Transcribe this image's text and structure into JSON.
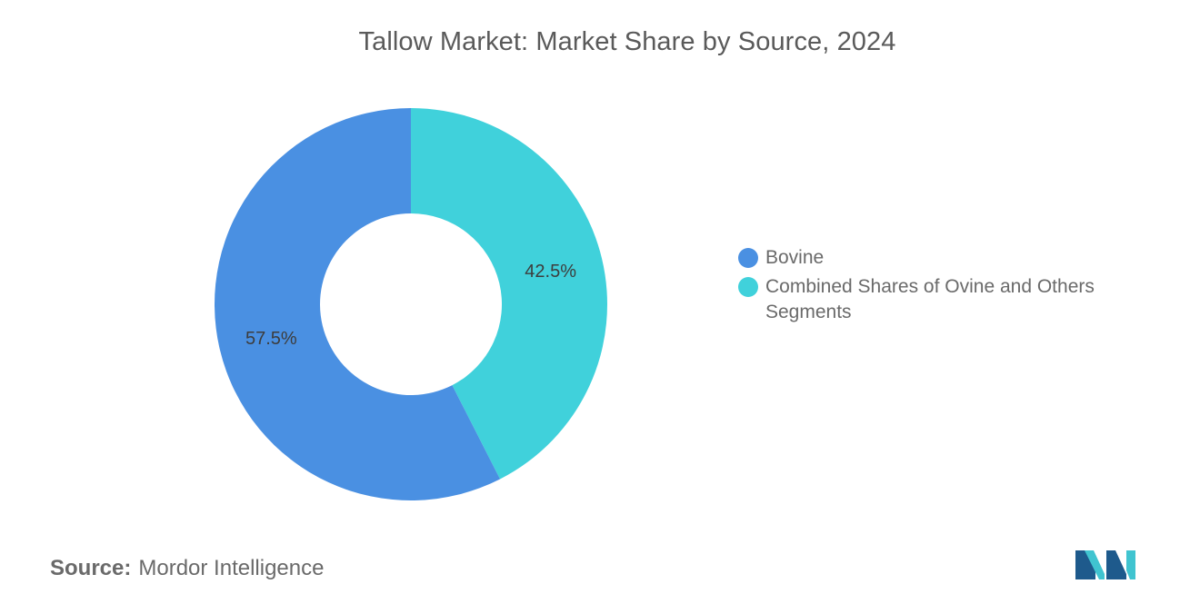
{
  "colors": {
    "bovine": "#4a90e2",
    "ovine_others": "#40d1db",
    "title": "#5a5a5a",
    "text": "#6a6a6a",
    "logo_dark": "#1e5a8c",
    "logo_light": "#40c4d0"
  },
  "chart_data": {
    "type": "pie",
    "title": "Tallow Market: Market Share by Source, 2024",
    "donut": true,
    "legend_position": "right",
    "slices": [
      {
        "name": "Bovine",
        "value": 57.5,
        "label": "57.5%",
        "color": "#4a90e2"
      },
      {
        "name": "Combined Shares of Ovine and Others Segments",
        "value": 42.5,
        "label": "42.5%",
        "color": "#40d1db"
      }
    ]
  },
  "source": {
    "key": "Source:",
    "value": "Mordor Intelligence"
  },
  "logo": {
    "icon": "mordor-intelligence-logo"
  }
}
